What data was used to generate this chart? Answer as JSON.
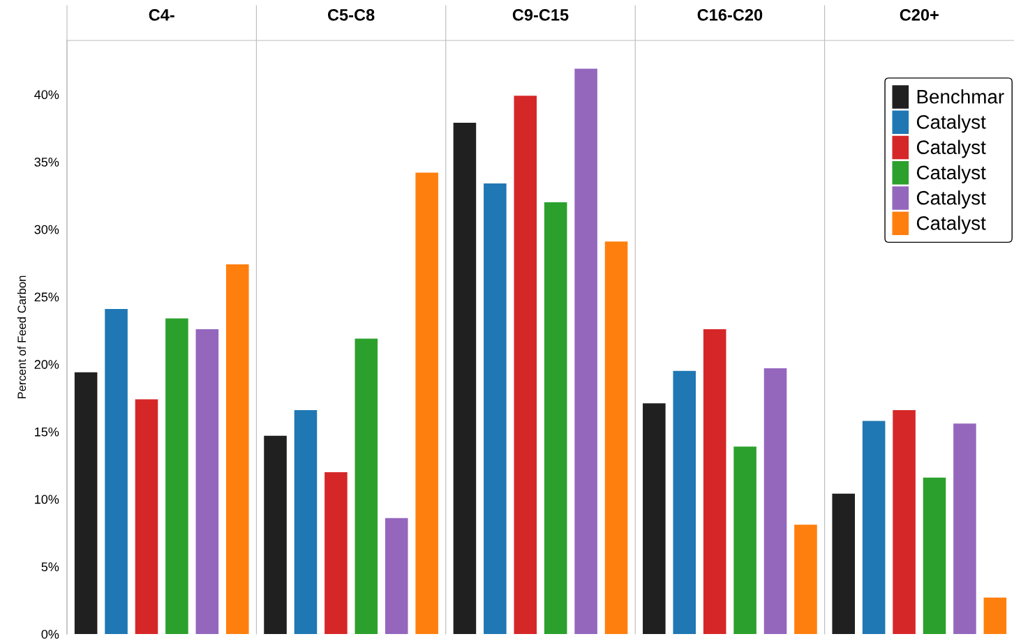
{
  "chart_data": {
    "type": "bar",
    "ylabel": "Percent of Feed Carbon",
    "categories": [
      "C4-",
      "C5-C8",
      "C9-C15",
      "C16-C20",
      "C20+"
    ],
    "ylim": [
      0,
      44
    ],
    "yticks": [
      {
        "value": 0,
        "label": "0%"
      },
      {
        "value": 5,
        "label": "5%"
      },
      {
        "value": 10,
        "label": "10%"
      },
      {
        "value": 15,
        "label": "15%"
      },
      {
        "value": 20,
        "label": "20%"
      },
      {
        "value": 25,
        "label": "25%"
      },
      {
        "value": 30,
        "label": "30%"
      },
      {
        "value": 35,
        "label": "35%"
      },
      {
        "value": 40,
        "label": "40%"
      }
    ],
    "legend": "top right",
    "series": [
      {
        "name": "Benchmar",
        "color": "#202020",
        "values": [
          19.4,
          14.7,
          37.9,
          17.1,
          10.4
        ]
      },
      {
        "name": "Catalyst",
        "color": "#1f77b4",
        "values": [
          24.1,
          16.6,
          33.4,
          19.5,
          15.8
        ]
      },
      {
        "name": "Catalyst",
        "color": "#d62728",
        "values": [
          17.4,
          12.0,
          39.9,
          22.6,
          16.6
        ]
      },
      {
        "name": "Catalyst",
        "color": "#2ca02c",
        "values": [
          23.4,
          21.9,
          32.0,
          13.9,
          11.6
        ]
      },
      {
        "name": "Catalyst",
        "color": "#9467bd",
        "values": [
          22.6,
          8.6,
          41.9,
          19.7,
          15.6
        ]
      },
      {
        "name": "Catalyst",
        "color": "#ff7f0e",
        "values": [
          27.4,
          34.2,
          29.1,
          8.1,
          2.7
        ]
      }
    ]
  }
}
